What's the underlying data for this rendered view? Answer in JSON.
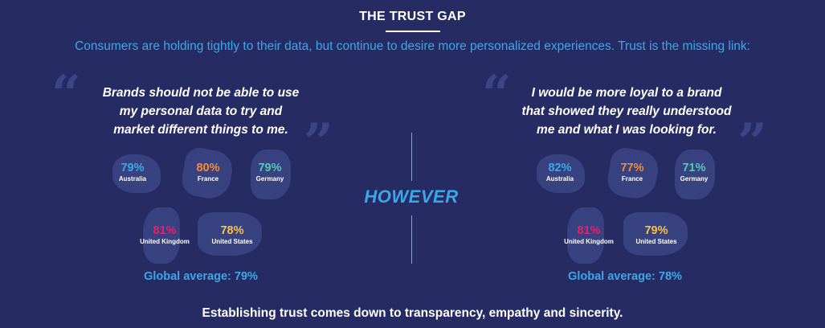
{
  "title": "THE TRUST GAP",
  "subtitle": "Consumers are holding tightly to their data, but continue to desire more personalized experiences. Trust is the missing link:",
  "colors": {
    "background": "#262c63",
    "blue": "#3aa8e8",
    "orange": "#f7893b",
    "teal": "#53c9b8",
    "pink": "#ea1f6e",
    "yellow": "#f6c343"
  },
  "left": {
    "quote_lines": [
      "Brands should not be able to use",
      "my personal data to try and",
      "market different things to me."
    ],
    "stats": [
      {
        "country": "Australia",
        "value": "79%",
        "color": "#3aa8e8"
      },
      {
        "country": "France",
        "value": "80%",
        "color": "#f7893b"
      },
      {
        "country": "Germany",
        "value": "79%",
        "color": "#53c9b8"
      },
      {
        "country": "United Kingdom",
        "value": "81%",
        "color": "#ea1f6e"
      },
      {
        "country": "United States",
        "value": "78%",
        "color": "#f6c343"
      }
    ],
    "average": "Global average: 79%"
  },
  "however": "HOWEVER",
  "right": {
    "quote_lines": [
      "I would be more loyal to a brand",
      "that showed they really understood",
      "me and what I was looking for."
    ],
    "stats": [
      {
        "country": "Australia",
        "value": "82%",
        "color": "#3aa8e8"
      },
      {
        "country": "France",
        "value": "77%",
        "color": "#f7893b"
      },
      {
        "country": "Germany",
        "value": "71%",
        "color": "#53c9b8"
      },
      {
        "country": "United Kingdom",
        "value": "81%",
        "color": "#ea1f6e"
      },
      {
        "country": "United States",
        "value": "79%",
        "color": "#f6c343"
      }
    ],
    "average": "Global average: 78%"
  },
  "footer": "Establishing trust comes down to transparency, empathy and sincerity.",
  "icons": {
    "open_quote": "open-quote-icon",
    "close_quote": "close-quote-icon"
  }
}
